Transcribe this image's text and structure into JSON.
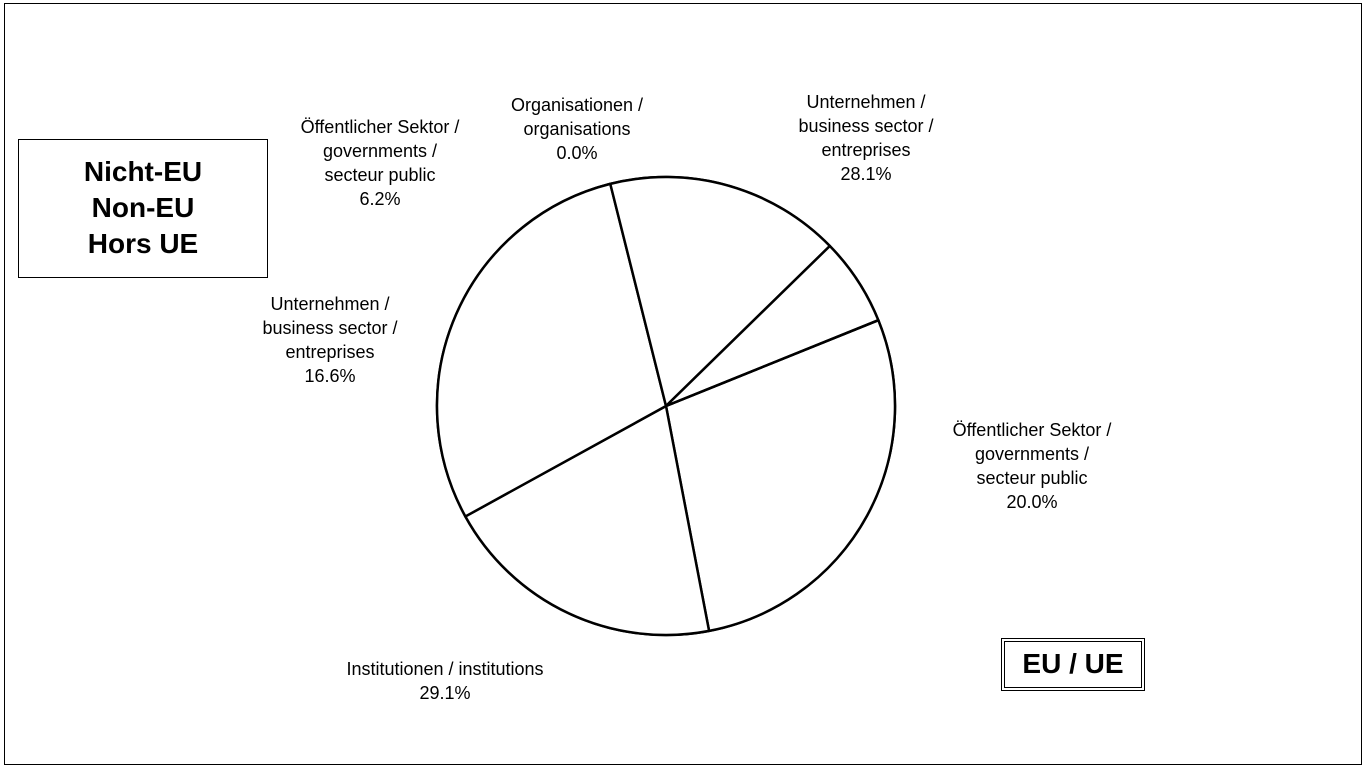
{
  "boxes": {
    "non_eu": [
      "Nicht-EU",
      "Non-EU",
      "Hors UE"
    ],
    "eu": "EU / UE"
  },
  "chart_data": {
    "type": "pie",
    "title": "",
    "slices": [
      {
        "label": [
          "Unternehmen /",
          "business sector /",
          "entreprises"
        ],
        "value": 28.1,
        "display": "28.1%",
        "group": "EU / UE"
      },
      {
        "label": [
          "Öffentlicher Sektor /",
          "governments /",
          "secteur public"
        ],
        "value": 20.0,
        "display": "20.0%",
        "group": "EU / UE"
      },
      {
        "label": [
          "Institutionen / institutions"
        ],
        "value": 29.1,
        "display": "29.1%",
        "group": ""
      },
      {
        "label": [
          "Unternehmen /",
          "business sector /",
          "entreprises"
        ],
        "value": 16.6,
        "display": "16.6%",
        "group": "Nicht-EU / Non-EU / Hors UE"
      },
      {
        "label": [
          "Öffentlicher Sektor /",
          "governments /",
          "secteur public"
        ],
        "value": 6.2,
        "display": "6.2%",
        "group": "Nicht-EU / Non-EU / Hors UE"
      },
      {
        "label": [
          "Organisationen /",
          "organisations"
        ],
        "value": 0.0,
        "display": "0.0%",
        "group": "Nicht-EU / Non-EU / Hors UE"
      }
    ],
    "start_angle_deg": -22,
    "direction": "clockwise",
    "colors": {
      "fill": "#ffffff",
      "stroke": "#000000"
    }
  }
}
